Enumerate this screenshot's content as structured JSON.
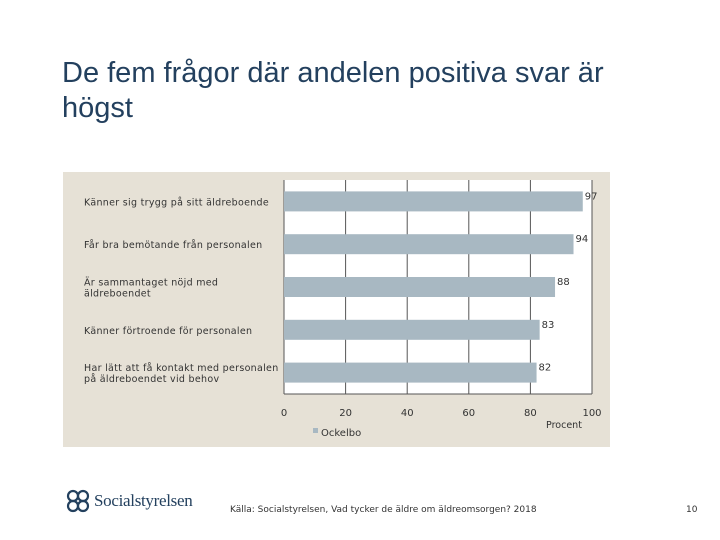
{
  "slide": {
    "title": "De fem frågor där andelen positiva svar är högst",
    "source": "Källa: Socialstyrelsen, Vad tycker de äldre om äldreomsorgen? 2018",
    "page_number": "10",
    "logo_text": "Socialstyrelsen"
  },
  "chart_data": {
    "type": "bar",
    "orientation": "horizontal",
    "categories": [
      [
        "Känner sig trygg på sitt äldreboende"
      ],
      [
        "Får bra bemötande från personalen"
      ],
      [
        "Är sammantaget nöjd med",
        "äldreboendet"
      ],
      [
        "Känner förtroende för personalen"
      ],
      [
        "Har lätt att få kontakt med personalen",
        "på äldreboendet vid behov"
      ]
    ],
    "series": [
      {
        "name": "Ockelbo",
        "values": [
          97,
          94,
          88,
          83,
          82
        ],
        "color": "#a8b8c2"
      }
    ],
    "data_labels": [
      "97",
      "94",
      "88",
      "83",
      "82"
    ],
    "xlim": [
      0,
      100
    ],
    "xticks": [
      0,
      20,
      40,
      60,
      80,
      100
    ],
    "xtick_labels": [
      "0",
      "20",
      "40",
      "60",
      "80",
      "100"
    ],
    "xlabel": "Procent",
    "grid": true,
    "legend": "bottom",
    "colors": {
      "panel": "#e6e1d6",
      "plot_bg": "#ffffff",
      "bar": "#a8b8c2",
      "title": "#23405e"
    }
  }
}
